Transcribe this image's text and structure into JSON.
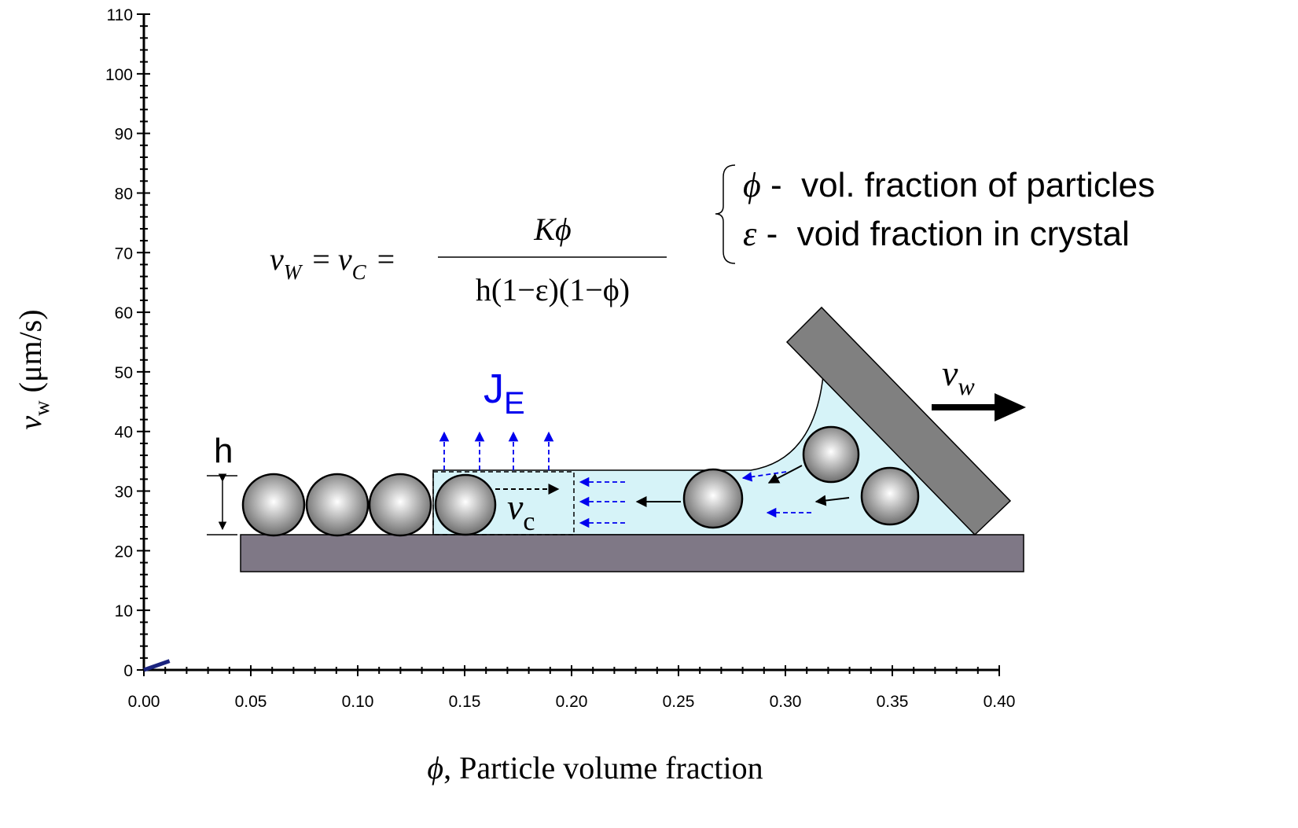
{
  "chart_data": {
    "type": "line",
    "x_label": {
      "symbol": "ϕ",
      "text": ", Particle volume fraction"
    },
    "y_label": {
      "symbol": "v",
      "sub": "w",
      "text": " (μm/s)"
    },
    "xlim": [
      0,
      0.4
    ],
    "ylim": [
      0,
      110
    ],
    "xticks": [
      {
        "value": 0,
        "label": "0.00"
      },
      {
        "value": 0.05,
        "label": "0.05"
      },
      {
        "value": 0.1,
        "label": "0.10"
      },
      {
        "value": 0.15,
        "label": "0.15"
      },
      {
        "value": 0.2,
        "label": "0.20"
      },
      {
        "value": 0.25,
        "label": "0.25"
      },
      {
        "value": 0.3,
        "label": "0.30"
      },
      {
        "value": 0.35,
        "label": "0.35"
      },
      {
        "value": 0.4,
        "label": "0.40"
      }
    ],
    "yticks": [
      0,
      10,
      20,
      30,
      40,
      50,
      60,
      70,
      80,
      90,
      100,
      110
    ],
    "xminorticks": [
      0.01,
      0.02,
      0.03,
      0.04,
      0.06,
      0.07,
      0.08,
      0.09,
      0.11,
      0.12,
      0.13,
      0.14,
      0.16,
      0.17,
      0.18,
      0.19,
      0.21,
      0.22,
      0.23,
      0.24,
      0.26,
      0.27,
      0.28,
      0.29,
      0.31,
      0.32,
      0.33,
      0.34,
      0.36,
      0.37,
      0.38,
      0.39
    ],
    "yminorticks": [
      2,
      4,
      6,
      8,
      12,
      14,
      16,
      18,
      22,
      24,
      26,
      28,
      32,
      34,
      36,
      38,
      42,
      44,
      46,
      48,
      52,
      54,
      56,
      58,
      62,
      64,
      66,
      68,
      72,
      74,
      76,
      78,
      82,
      84,
      86,
      88,
      92,
      94,
      96,
      98,
      102,
      104,
      106,
      108
    ],
    "series": [
      {
        "color": "#1a237e",
        "x": [
          0,
          0.012
        ],
        "values": [
          0,
          1.5
        ]
      }
    ]
  },
  "diagram": {
    "equation": {
      "lhs": "v",
      "lhs_sub": "W",
      "eq1": "=",
      "mid": "v",
      "mid_sub": "C",
      "eq2": "=",
      "numerator": "Kϕ",
      "denominator": "h(1−ε)(1−ϕ)"
    },
    "legend": [
      {
        "symbol": "ϕ",
        "text": " -  vol. fraction of particles"
      },
      {
        "symbol": "ε",
        "text": " -  void fraction in crystal"
      }
    ],
    "h_label": "h",
    "flux": {
      "symbol": "J",
      "sub": "E"
    },
    "crystal_velocity": {
      "symbol": "v",
      "sub": "c"
    },
    "withdrawal_velocity": {
      "symbol": "v",
      "sub": "w"
    }
  }
}
